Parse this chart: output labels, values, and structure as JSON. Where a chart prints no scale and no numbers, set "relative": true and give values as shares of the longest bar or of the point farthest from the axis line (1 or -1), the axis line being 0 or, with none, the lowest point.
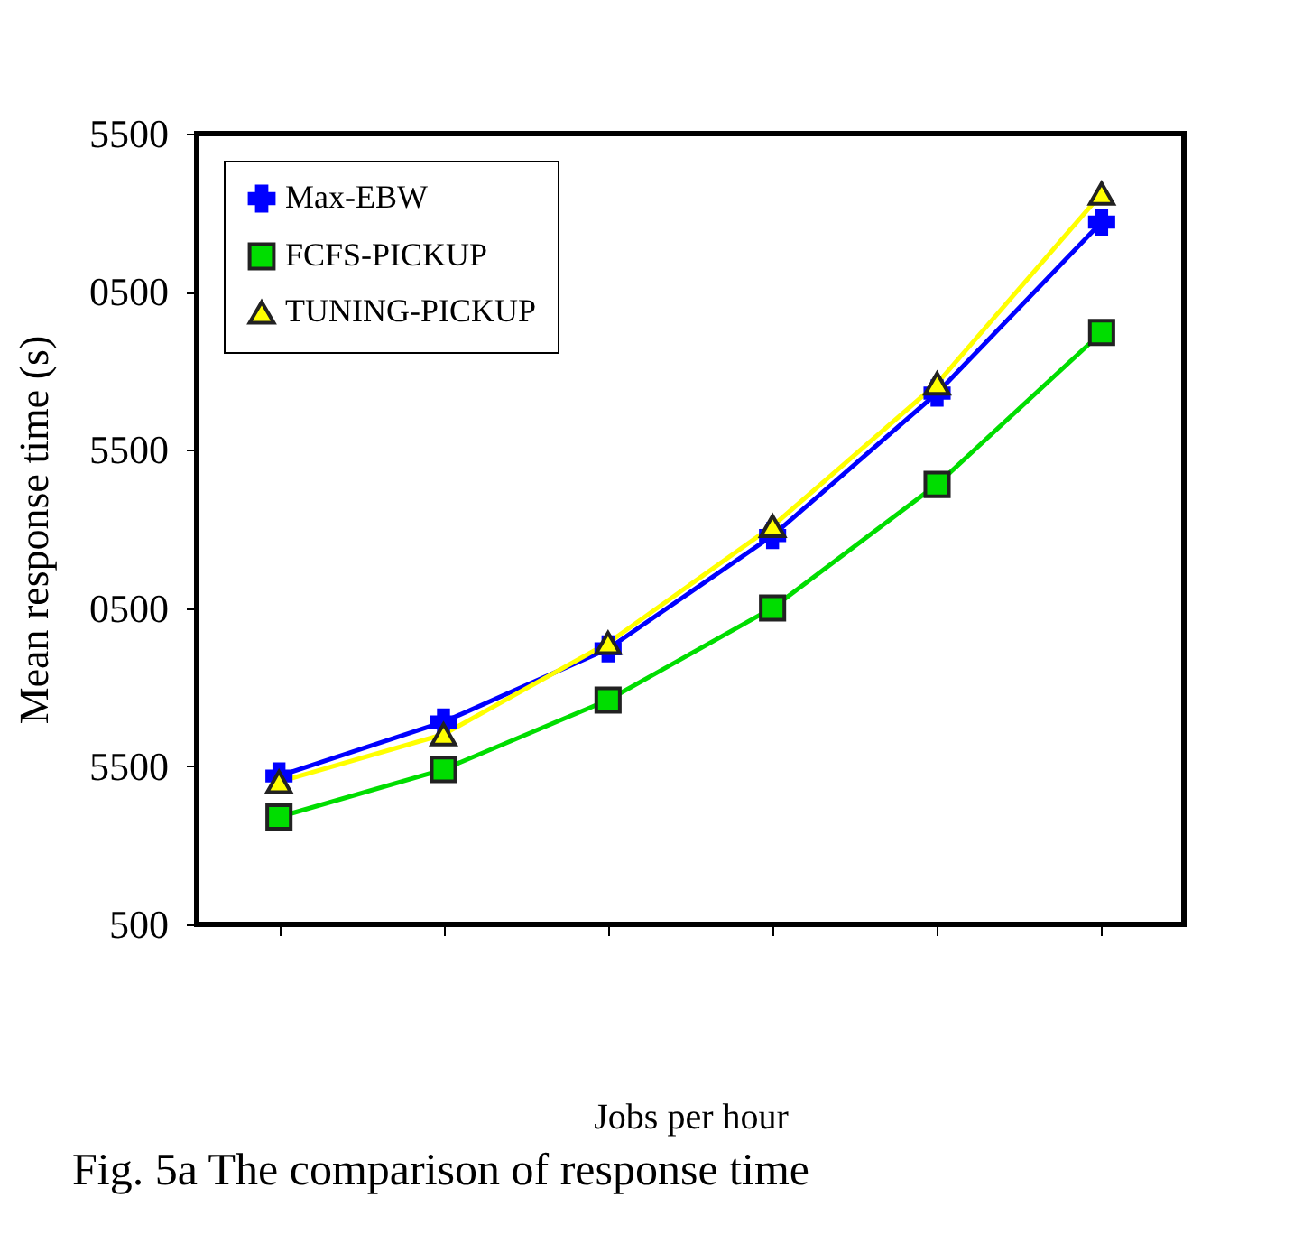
{
  "chart_data": {
    "type": "line",
    "relative": true,
    "xlabel": "Jobs per hour",
    "ylabel": "Mean response time (s)",
    "annotations": [
      "5500",
      "0500",
      "5500",
      "0500",
      "5500",
      "500",
      "Fig. 5a  The comparison of response time"
    ],
    "categories": [
      null,
      null,
      null,
      null,
      null,
      null
    ],
    "series": [
      {
        "name": "Max-EBW",
        "color": "#0000ff",
        "marker": "cross",
        "values": [
          0.203,
          0.277,
          0.377,
          0.532,
          0.727,
          0.961
        ]
      },
      {
        "name": "FCFS-PICKUP",
        "color": "#00dd00",
        "marker": "square",
        "values": [
          0.147,
          0.212,
          0.307,
          0.433,
          0.602,
          0.81
        ]
      },
      {
        "name": "TUNING-PICKUP",
        "color": "#ffff00",
        "marker": "triangle",
        "values": [
          0.195,
          0.26,
          0.385,
          0.545,
          0.74,
          1
        ]
      }
    ],
    "grid": false,
    "legend": "top left",
    "line_style": "solid"
  }
}
